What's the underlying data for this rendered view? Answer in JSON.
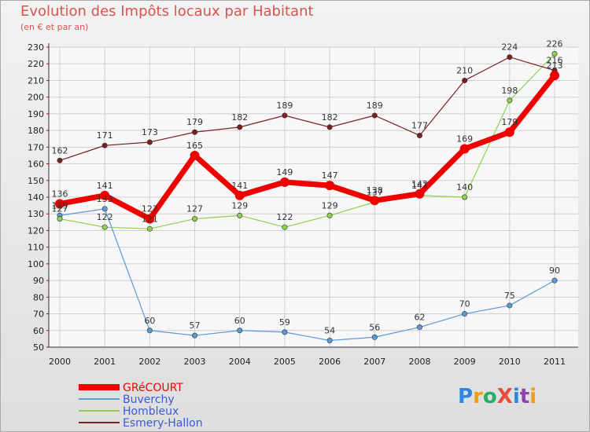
{
  "chart_data": {
    "type": "line",
    "title": "Evolution des Impôts locaux par Habitant",
    "subtitle": "(en € et par an)",
    "xlabel": "",
    "ylabel": "",
    "ylim": [
      50,
      230
    ],
    "ytick_step": 10,
    "categories": [
      "2000",
      "2001",
      "2002",
      "2003",
      "2004",
      "2005",
      "2006",
      "2007",
      "2008",
      "2009",
      "2010",
      "2011"
    ],
    "series": [
      {
        "name": "GRéCOURT",
        "color": "#ee0000",
        "values": [
          136,
          141,
          127,
          165,
          141,
          149,
          147,
          138,
          142,
          169,
          179,
          213
        ],
        "bold": true
      },
      {
        "name": "Buverchy",
        "color": "#5b9bd5",
        "values": [
          129,
          133,
          60,
          57,
          60,
          59,
          54,
          56,
          62,
          70,
          75,
          90
        ]
      },
      {
        "name": "Hombleux",
        "color": "#8fd14f",
        "values": [
          127,
          122,
          121,
          127,
          129,
          122,
          129,
          137,
          141,
          140,
          198,
          226
        ]
      },
      {
        "name": "Esmery-Hallon",
        "color": "#7b2020",
        "values": [
          162,
          171,
          173,
          179,
          182,
          189,
          182,
          189,
          177,
          210,
          224,
          216
        ]
      }
    ],
    "legend_position": "bottom-left",
    "grid": true
  },
  "brand": {
    "name": "ProXiti"
  }
}
